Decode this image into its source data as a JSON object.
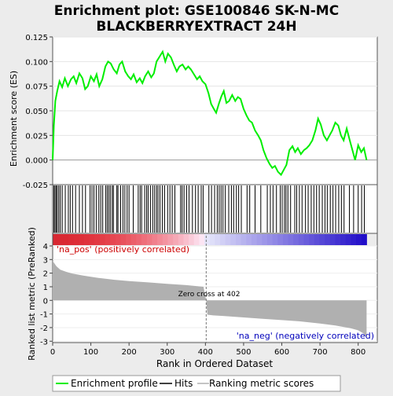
{
  "title_line1": "Enrichment plot: GSE100846 SK-N-MC",
  "title_line2": "BLACKBERRYEXTRACT 24H",
  "ylabel_top": "Enrichment score (ES)",
  "ylabel_bottom": "Ranked list metric (PreRanked)",
  "xlabel": "Rank in Ordered Dataset",
  "label_pos": "'na_pos' (positively correlated)",
  "label_neg": "'na_neg' (negatively correlated)",
  "zero_cross_label": "Zero cross at 402",
  "legend": {
    "es": "Enrichment profile",
    "hits": "Hits",
    "metric": "Ranking metric scores"
  },
  "colors": {
    "es_line": "#00ee00",
    "hits": "#000000",
    "metric_fill": "#b0b0b0",
    "pos_label": "#cc0000",
    "neg_label": "#0000bb"
  },
  "chart_data": [
    {
      "type": "line",
      "name": "Enrichment profile",
      "xlim": [
        0,
        850
      ],
      "ylim": [
        -0.025,
        0.125
      ],
      "yticks": [
        "-0.025",
        "0.000",
        "0.025",
        "0.050",
        "0.075",
        "0.100",
        "0.125"
      ],
      "x": [
        0,
        3,
        7,
        12,
        18,
        25,
        32,
        40,
        48,
        55,
        62,
        70,
        78,
        85,
        92,
        100,
        108,
        115,
        122,
        130,
        138,
        145,
        152,
        160,
        168,
        175,
        182,
        190,
        198,
        205,
        212,
        220,
        228,
        235,
        242,
        250,
        258,
        265,
        272,
        280,
        288,
        295,
        302,
        310,
        318,
        325,
        332,
        340,
        348,
        355,
        362,
        370,
        378,
        385,
        392,
        400,
        408,
        415,
        422,
        428,
        435,
        442,
        448,
        455,
        462,
        470,
        478,
        485,
        492,
        500,
        508,
        515,
        522,
        530,
        538,
        545,
        552,
        560,
        568,
        575,
        582,
        590,
        598,
        605,
        612,
        620,
        628,
        635,
        642,
        650,
        658,
        665,
        672,
        680,
        688,
        695,
        702,
        710,
        718,
        725,
        732,
        740,
        748,
        755,
        762,
        770,
        778,
        785,
        792,
        800,
        808,
        815,
        822
      ],
      "y": [
        0.0,
        0.035,
        0.06,
        0.07,
        0.08,
        0.074,
        0.083,
        0.075,
        0.082,
        0.085,
        0.078,
        0.088,
        0.083,
        0.072,
        0.075,
        0.085,
        0.08,
        0.087,
        0.075,
        0.082,
        0.095,
        0.1,
        0.098,
        0.092,
        0.088,
        0.097,
        0.1,
        0.09,
        0.085,
        0.082,
        0.087,
        0.079,
        0.083,
        0.078,
        0.085,
        0.09,
        0.084,
        0.088,
        0.1,
        0.105,
        0.11,
        0.1,
        0.108,
        0.104,
        0.096,
        0.09,
        0.095,
        0.097,
        0.092,
        0.095,
        0.092,
        0.087,
        0.082,
        0.085,
        0.08,
        0.077,
        0.068,
        0.057,
        0.052,
        0.048,
        0.057,
        0.065,
        0.07,
        0.058,
        0.06,
        0.066,
        0.06,
        0.064,
        0.062,
        0.052,
        0.045,
        0.04,
        0.038,
        0.03,
        0.025,
        0.02,
        0.01,
        0.002,
        -0.004,
        -0.008,
        -0.006,
        -0.012,
        -0.015,
        -0.01,
        -0.005,
        0.01,
        0.014,
        0.008,
        0.012,
        0.006,
        0.01,
        0.012,
        0.015,
        0.02,
        0.03,
        0.042,
        0.036,
        0.025,
        0.02,
        0.025,
        0.03,
        0.038,
        0.035,
        0.025,
        0.02,
        0.032,
        0.02,
        0.01,
        0.0,
        0.015,
        0.008,
        0.012,
        0.0
      ]
    },
    {
      "type": "area",
      "name": "Ranking metric scores",
      "xlim": [
        0,
        850
      ],
      "ylim": [
        -3.1,
        4.0
      ],
      "yticks": [
        "-3",
        "-2",
        "-1",
        "0",
        "1",
        "2",
        "3",
        "4"
      ],
      "zero_cross": 402,
      "x": [
        0,
        5,
        10,
        20,
        35,
        50,
        80,
        120,
        160,
        200,
        250,
        300,
        350,
        395,
        402,
        405,
        420,
        450,
        500,
        550,
        600,
        650,
        700,
        740,
        780,
        800,
        815,
        822
      ],
      "y": [
        2.9,
        2.7,
        2.5,
        2.25,
        2.1,
        1.98,
        1.82,
        1.65,
        1.52,
        1.42,
        1.32,
        1.22,
        1.12,
        1.0,
        0.0,
        -1.05,
        -1.1,
        -1.15,
        -1.25,
        -1.35,
        -1.45,
        -1.55,
        -1.7,
        -1.85,
        -2.05,
        -2.2,
        -2.45,
        -2.8
      ]
    }
  ],
  "hits_x": [
    3,
    6,
    9,
    12,
    16,
    20,
    25,
    33,
    41,
    46,
    52,
    60,
    70,
    78,
    86,
    98,
    103,
    108,
    114,
    121,
    126,
    131,
    139,
    143,
    147,
    151,
    156,
    159,
    168,
    171,
    178,
    184,
    189,
    195,
    200,
    211,
    224,
    229,
    233,
    241,
    246,
    250,
    256,
    262,
    267,
    272,
    276,
    281,
    287,
    293,
    301,
    307,
    313,
    320,
    335,
    339,
    344,
    351,
    357,
    366,
    374,
    381,
    389,
    394,
    409,
    416,
    424,
    431,
    436,
    441,
    446,
    452,
    461,
    468,
    474,
    481,
    487,
    494,
    509,
    516,
    530,
    545,
    562,
    570,
    577,
    586,
    596,
    601,
    607,
    611,
    616,
    623,
    634,
    639,
    646,
    653,
    662,
    669,
    677,
    684,
    691,
    698,
    706,
    713,
    719,
    727,
    734,
    741,
    749,
    756,
    763,
    777,
    788,
    800,
    809,
    816
  ],
  "x_ticks": [
    0,
    100,
    200,
    300,
    400,
    500,
    600,
    700,
    800
  ]
}
